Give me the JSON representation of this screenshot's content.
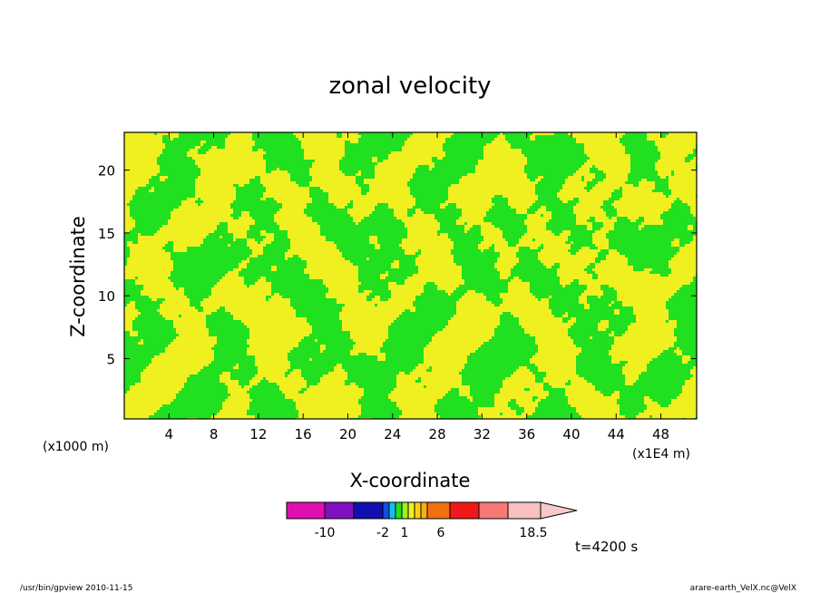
{
  "chart_data": {
    "type": "heatmap",
    "title": "zonal velocity",
    "xlabel": "X-coordinate",
    "ylabel": "Z-coordinate",
    "x_unit": "(x1E4 m)",
    "y_unit": "(x1000 m)",
    "xlim": [
      0,
      51.2
    ],
    "ylim": [
      0.2,
      23
    ],
    "x_ticks": [
      4,
      8,
      12,
      16,
      20,
      24,
      28,
      32,
      36,
      40,
      44,
      48
    ],
    "y_ticks": [
      5,
      10,
      15,
      20
    ],
    "time_label": "t=4200 s",
    "colorbar": {
      "bins": [
        {
          "color": "#e010b0"
        },
        {
          "color": "#8010c0"
        },
        {
          "color": "#1010b0"
        },
        {
          "color": "#1050e0"
        },
        {
          "color": "#10c0f0"
        },
        {
          "color": "#20e020"
        },
        {
          "color": "#a0f020"
        },
        {
          "color": "#f0f020"
        },
        {
          "color": "#f8d010"
        },
        {
          "color": "#f8b010"
        },
        {
          "color": "#f07010"
        },
        {
          "color": "#f01818"
        },
        {
          "color": "#f87878"
        },
        {
          "color": "#f8c0c0"
        },
        {
          "color": "#f8c8c8"
        }
      ],
      "labels": [
        "-10",
        "-2",
        "1",
        "6",
        "18.5"
      ]
    },
    "field_colors": {
      "negative": "#20e020",
      "positive": "#f0f020"
    }
  },
  "footer": {
    "left": "/usr/bin/gpview   2010-11-15",
    "right": "arare-earth_VelX.nc@VelX"
  }
}
